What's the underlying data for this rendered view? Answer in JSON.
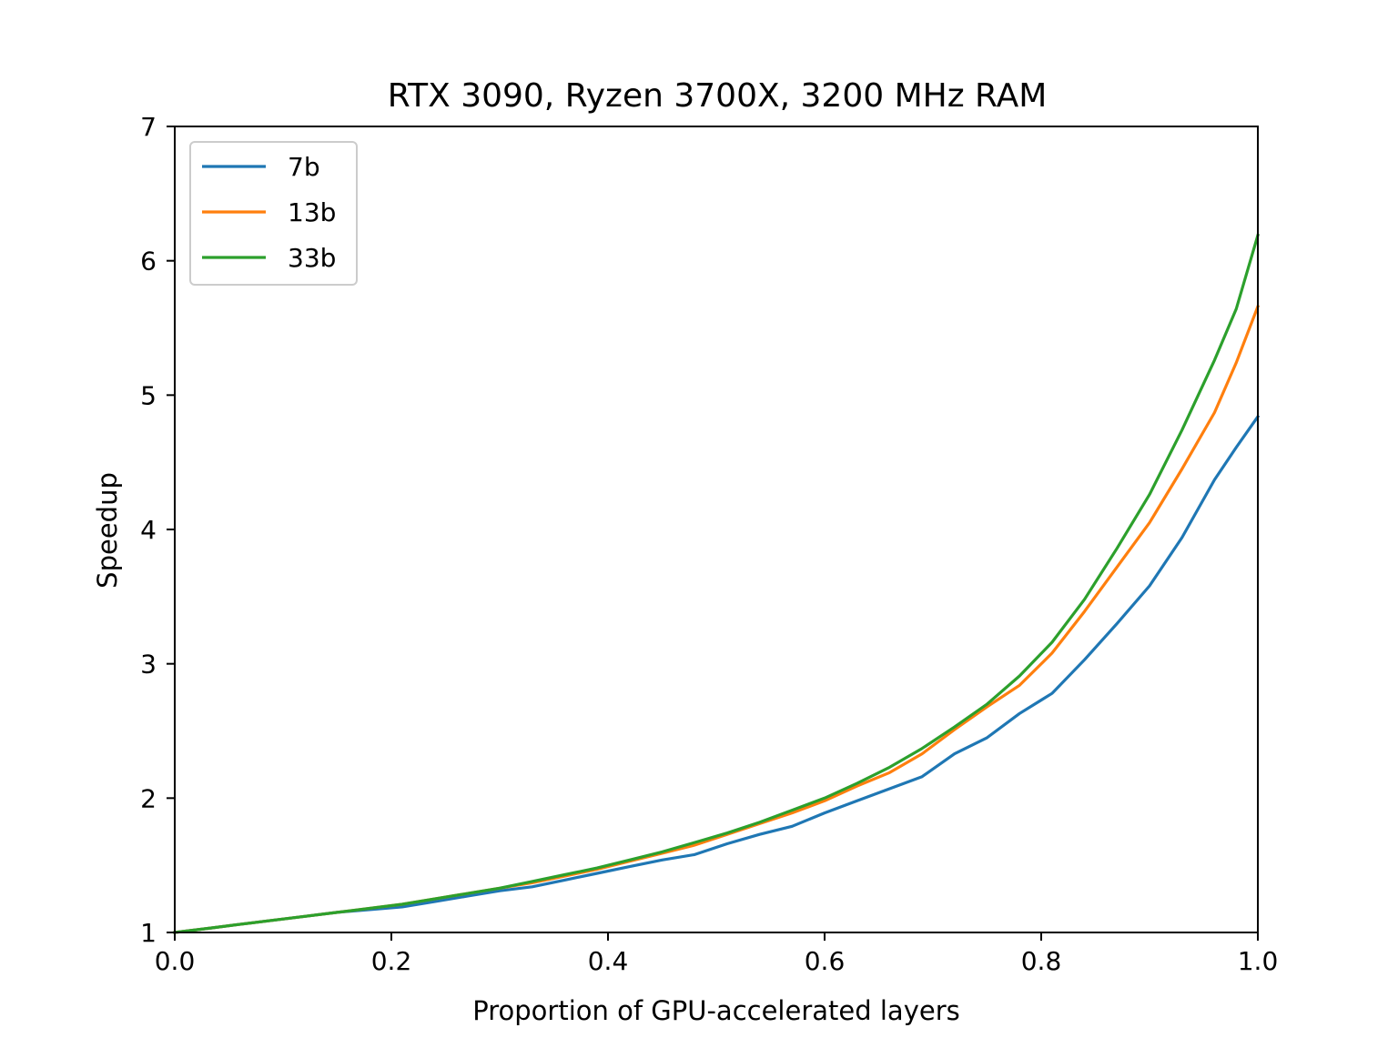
{
  "chart_data": {
    "type": "line",
    "title": "RTX 3090, Ryzen 3700X, 3200 MHz RAM",
    "xlabel": "Proportion of GPU-accelerated layers",
    "ylabel": "Speedup",
    "xlim": [
      0.0,
      1.0
    ],
    "ylim": [
      1,
      7
    ],
    "xticks": [
      "0.0",
      "0.2",
      "0.4",
      "0.6",
      "0.8",
      "1.0"
    ],
    "yticks": [
      "1",
      "2",
      "3",
      "4",
      "5",
      "6",
      "7"
    ],
    "grid": false,
    "legend_position": "top-left",
    "x": [
      0.0,
      0.03,
      0.06,
      0.09,
      0.12,
      0.15,
      0.18,
      0.21,
      0.24,
      0.27,
      0.3,
      0.33,
      0.36,
      0.39,
      0.42,
      0.45,
      0.48,
      0.51,
      0.54,
      0.57,
      0.6,
      0.63,
      0.66,
      0.69,
      0.72,
      0.75,
      0.78,
      0.81,
      0.84,
      0.87,
      0.9,
      0.93,
      0.96,
      0.98,
      1.0
    ],
    "series": [
      {
        "name": "7b",
        "color": "#1f77b4",
        "values": [
          1.0,
          1.03,
          1.06,
          1.09,
          1.12,
          1.15,
          1.17,
          1.19,
          1.23,
          1.27,
          1.31,
          1.34,
          1.39,
          1.44,
          1.49,
          1.54,
          1.58,
          1.66,
          1.73,
          1.79,
          1.89,
          1.98,
          2.07,
          2.16,
          2.33,
          2.45,
          2.63,
          2.78,
          3.03,
          3.3,
          3.58,
          3.94,
          4.37,
          4.61,
          4.84
        ]
      },
      {
        "name": "13b",
        "color": "#ff7f0e",
        "values": [
          1.0,
          1.03,
          1.06,
          1.09,
          1.12,
          1.15,
          1.18,
          1.21,
          1.25,
          1.29,
          1.33,
          1.37,
          1.42,
          1.47,
          1.53,
          1.59,
          1.65,
          1.73,
          1.81,
          1.89,
          1.98,
          2.09,
          2.19,
          2.33,
          2.51,
          2.68,
          2.84,
          3.08,
          3.39,
          3.72,
          4.05,
          4.45,
          4.87,
          5.24,
          5.66
        ]
      },
      {
        "name": "33b",
        "color": "#2ca02c",
        "values": [
          1.0,
          1.03,
          1.06,
          1.09,
          1.12,
          1.15,
          1.18,
          1.21,
          1.25,
          1.29,
          1.33,
          1.38,
          1.43,
          1.48,
          1.54,
          1.6,
          1.67,
          1.74,
          1.82,
          1.91,
          2.0,
          2.11,
          2.23,
          2.37,
          2.53,
          2.7,
          2.91,
          3.16,
          3.48,
          3.86,
          4.26,
          4.74,
          5.26,
          5.64,
          6.19
        ]
      }
    ]
  }
}
